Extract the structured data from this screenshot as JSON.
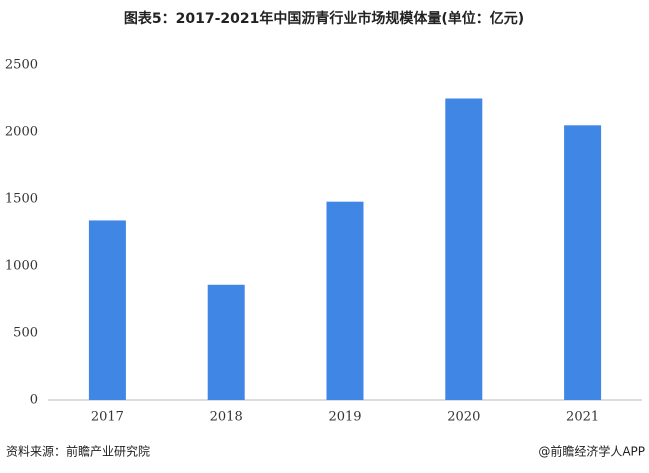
{
  "chart_data": {
    "type": "bar",
    "title": "图表5：2017-2021年中国沥青行业市场规模体量(单位：亿元)",
    "categories": [
      "2017",
      "2018",
      "2019",
      "2020",
      "2021"
    ],
    "values": [
      1340,
      860,
      1480,
      2250,
      2050
    ],
    "color": "#4086e4",
    "ylim": [
      0,
      2500
    ],
    "yticks": [
      0,
      500,
      1000,
      1500,
      2000,
      2500
    ],
    "grid": false,
    "source": "资料来源：前瞻产业研究院",
    "credit": "@前瞻经济学人APP"
  }
}
